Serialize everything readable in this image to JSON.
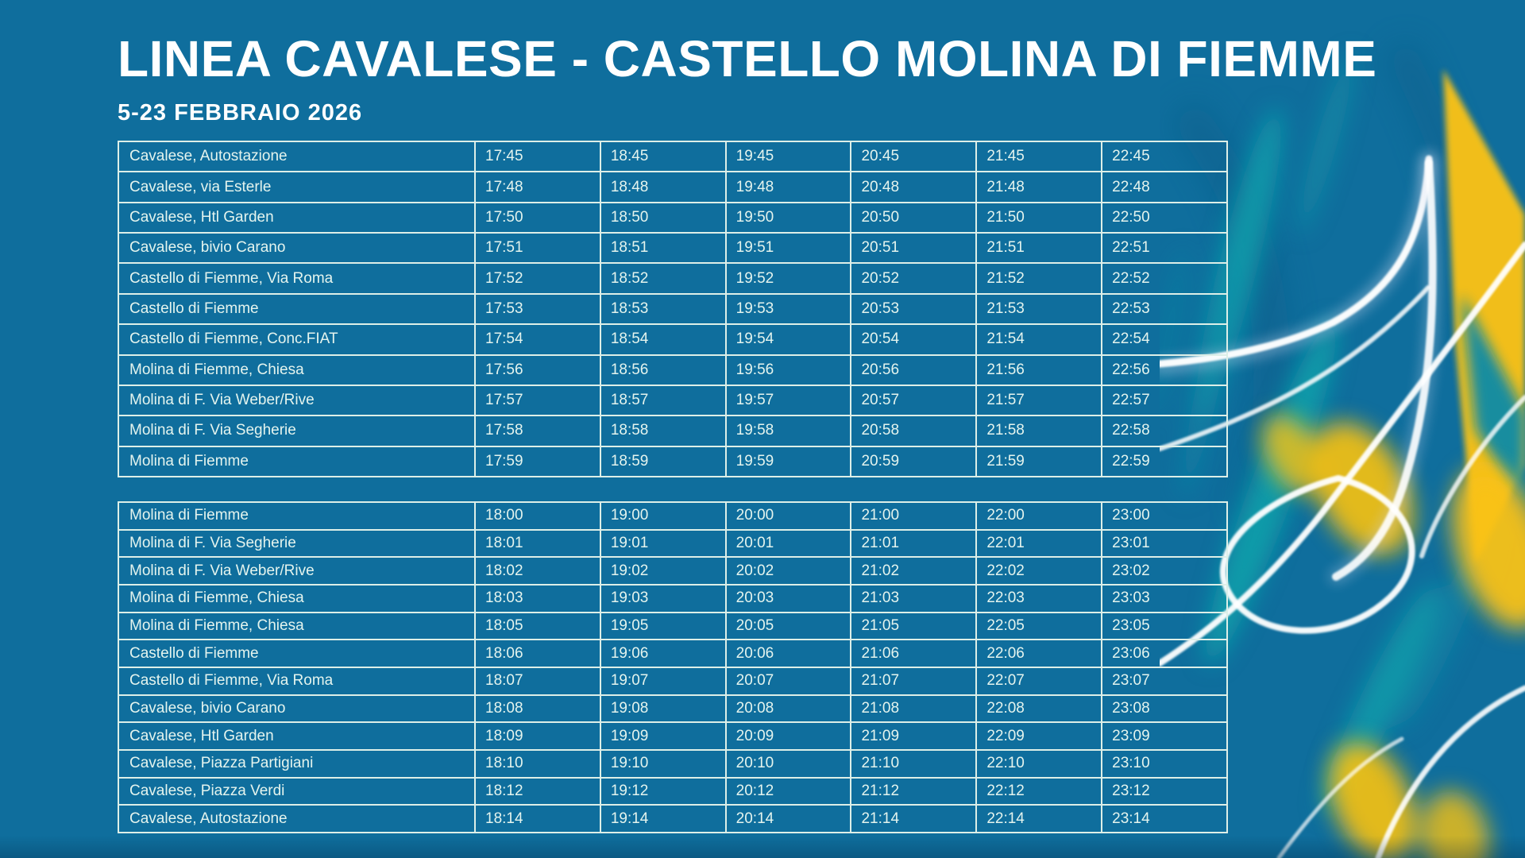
{
  "page": {
    "title": "LINEA CAVALESE - CASTELLO MOLINA DI FIEMME",
    "subtitle": "5-23 FEBBRAIO 2026"
  },
  "colors": {
    "background": "#0f6e9d",
    "table_line": "#ddefe8",
    "cell_text": "#e4f4ee",
    "title_text": "#ffffff",
    "accent_yellow": "#f9c213",
    "accent_teal": "#12a3ac",
    "accent_teal_deep": "#0c8ba6",
    "ribbon_white": "#ffffff",
    "ribbon_lavender": "#c8d4ec",
    "dark_arc": "#0a5a85"
  },
  "tables": [
    {
      "rows": [
        {
          "stop": "Cavalese, Autostazione",
          "times": [
            "17:45",
            "18:45",
            "19:45",
            "20:45",
            "21:45",
            "22:45"
          ]
        },
        {
          "stop": "Cavalese, via Esterle",
          "times": [
            "17:48",
            "18:48",
            "19:48",
            "20:48",
            "21:48",
            "22:48"
          ]
        },
        {
          "stop": "Cavalese, Htl Garden",
          "times": [
            "17:50",
            "18:50",
            "19:50",
            "20:50",
            "21:50",
            "22:50"
          ]
        },
        {
          "stop": "Cavalese, bivio Carano",
          "times": [
            "17:51",
            "18:51",
            "19:51",
            "20:51",
            "21:51",
            "22:51"
          ]
        },
        {
          "stop": "Castello di Fiemme, Via Roma",
          "times": [
            "17:52",
            "18:52",
            "19:52",
            "20:52",
            "21:52",
            "22:52"
          ]
        },
        {
          "stop": "Castello di Fiemme",
          "times": [
            "17:53",
            "18:53",
            "19:53",
            "20:53",
            "21:53",
            "22:53"
          ]
        },
        {
          "stop": "Castello di Fiemme, Conc.FIAT",
          "times": [
            "17:54",
            "18:54",
            "19:54",
            "20:54",
            "21:54",
            "22:54"
          ]
        },
        {
          "stop": "Molina di Fiemme, Chiesa",
          "times": [
            "17:56",
            "18:56",
            "19:56",
            "20:56",
            "21:56",
            "22:56"
          ]
        },
        {
          "stop": "Molina di F. Via Weber/Rive",
          "times": [
            "17:57",
            "18:57",
            "19:57",
            "20:57",
            "21:57",
            "22:57"
          ]
        },
        {
          "stop": "Molina di F. Via Segherie",
          "times": [
            "17:58",
            "18:58",
            "19:58",
            "20:58",
            "21:58",
            "22:58"
          ]
        },
        {
          "stop": "Molina di Fiemme",
          "times": [
            "17:59",
            "18:59",
            "19:59",
            "20:59",
            "21:59",
            "22:59"
          ]
        }
      ]
    },
    {
      "rows": [
        {
          "stop": "Molina di Fiemme",
          "times": [
            "18:00",
            "19:00",
            "20:00",
            "21:00",
            "22:00",
            "23:00"
          ]
        },
        {
          "stop": "Molina di F. Via Segherie",
          "times": [
            "18:01",
            "19:01",
            "20:01",
            "21:01",
            "22:01",
            "23:01"
          ]
        },
        {
          "stop": "Molina di F. Via Weber/Rive",
          "times": [
            "18:02",
            "19:02",
            "20:02",
            "21:02",
            "22:02",
            "23:02"
          ]
        },
        {
          "stop": "Molina di Fiemme, Chiesa",
          "times": [
            "18:03",
            "19:03",
            "20:03",
            "21:03",
            "22:03",
            "23:03"
          ]
        },
        {
          "stop": "Molina di Fiemme, Chiesa",
          "times": [
            "18:05",
            "19:05",
            "20:05",
            "21:05",
            "22:05",
            "23:05"
          ]
        },
        {
          "stop": "Castello di Fiemme",
          "times": [
            "18:06",
            "19:06",
            "20:06",
            "21:06",
            "22:06",
            "23:06"
          ]
        },
        {
          "stop": "Castello di Fiemme, Via Roma",
          "times": [
            "18:07",
            "19:07",
            "20:07",
            "21:07",
            "22:07",
            "23:07"
          ]
        },
        {
          "stop": "Cavalese, bivio Carano",
          "times": [
            "18:08",
            "19:08",
            "20:08",
            "21:08",
            "22:08",
            "23:08"
          ]
        },
        {
          "stop": "Cavalese, Htl Garden",
          "times": [
            "18:09",
            "19:09",
            "20:09",
            "21:09",
            "22:09",
            "23:09"
          ]
        },
        {
          "stop": "Cavalese, Piazza Partigiani",
          "times": [
            "18:10",
            "19:10",
            "20:10",
            "21:10",
            "22:10",
            "23:10"
          ]
        },
        {
          "stop": "Cavalese, Piazza Verdi",
          "times": [
            "18:12",
            "19:12",
            "20:12",
            "21:12",
            "22:12",
            "23:12"
          ]
        },
        {
          "stop": "Cavalese, Autostazione",
          "times": [
            "18:14",
            "19:14",
            "20:14",
            "21:14",
            "22:14",
            "23:14"
          ]
        }
      ]
    }
  ]
}
